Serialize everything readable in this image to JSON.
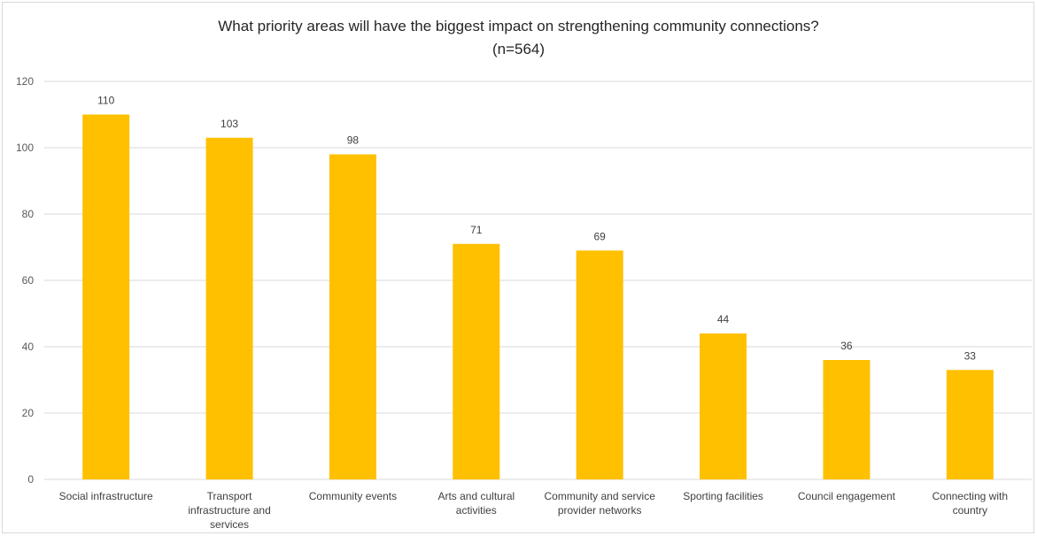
{
  "chart_data": {
    "type": "bar",
    "title": "What priority areas will have the biggest impact on strengthening community connections?",
    "subtitle": "(n=564)",
    "categories": [
      "Social infrastructure",
      "Transport infrastructure and services",
      "Community events",
      "Arts and cultural activities",
      "Community and service provider networks",
      "Sporting facilities",
      "Council engagement",
      "Connecting with country"
    ],
    "category_lines": [
      [
        "Social infrastructure"
      ],
      [
        "Transport",
        "infrastructure and",
        "services"
      ],
      [
        "Community events"
      ],
      [
        "Arts and cultural",
        "activities"
      ],
      [
        "Community and service",
        "provider networks"
      ],
      [
        "Sporting facilities"
      ],
      [
        "Council engagement"
      ],
      [
        "Connecting with",
        "country"
      ]
    ],
    "values": [
      110,
      103,
      98,
      71,
      69,
      44,
      36,
      33
    ],
    "data_labels": [
      "110",
      "103",
      "98",
      "71",
      "69",
      "44",
      "36",
      "33"
    ],
    "xlabel": "",
    "ylabel": "",
    "ylim": [
      0,
      120
    ],
    "yticks": [
      0,
      20,
      40,
      60,
      80,
      100,
      120
    ],
    "grid": true,
    "legend": "none",
    "bar_color": "#ffc000",
    "grid_color": "#d9d9d9"
  }
}
